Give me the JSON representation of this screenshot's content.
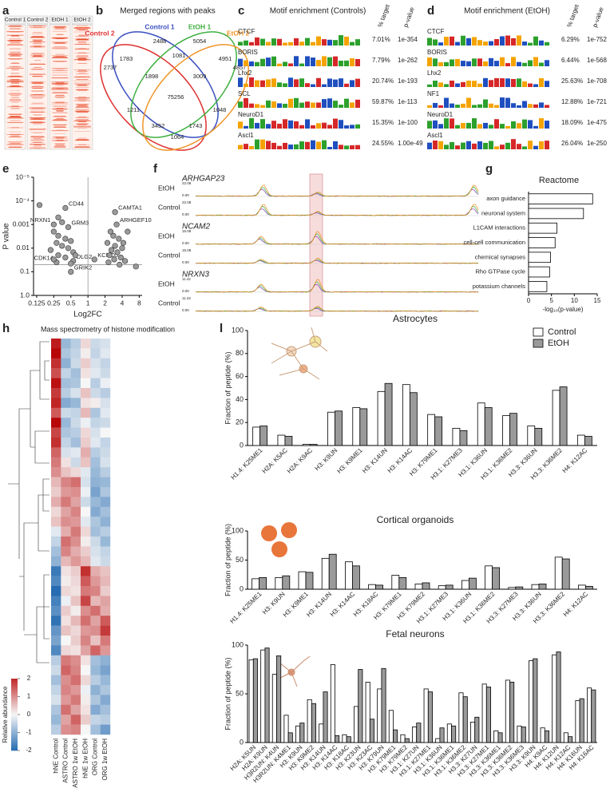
{
  "panels": [
    "a",
    "b",
    "c",
    "d",
    "e",
    "f",
    "g",
    "h",
    "l"
  ],
  "panel_a": {
    "samples": [
      "Control 1",
      "Control 2",
      "EtOH 1",
      "EtOH 2"
    ]
  },
  "panel_b": {
    "title": "Merged regions with peaks",
    "sets": [
      {
        "name": "Control 2",
        "color": "#e03030"
      },
      {
        "name": "Control 1",
        "color": "#3a4fc0"
      },
      {
        "name": "EtOH 1",
        "color": "#3fb040"
      },
      {
        "name": "EtOH 2",
        "color": "#f0962a"
      }
    ],
    "regions": [
      2737,
      2488,
      5054,
      4857,
      1783,
      1081,
      4951,
      1898,
      3009,
      75256,
      1211,
      1048,
      3452,
      1743,
      1064
    ]
  },
  "panel_c": {
    "title": "Motif enrichment (Controls)",
    "columns": [
      "% target",
      "p-value"
    ],
    "rows": [
      [
        "CTCF",
        "7.01%",
        "1e-354"
      ],
      [
        "BORIS",
        "7.79%",
        "1e-262"
      ],
      [
        "Lhx2",
        "20.74%",
        "1e-193"
      ],
      [
        "SCL",
        "59.87%",
        "1e-113"
      ],
      [
        "NeuroD1",
        "15.35%",
        "1e-100"
      ],
      [
        "Ascl1",
        "24.55%",
        "1.00e-49"
      ]
    ]
  },
  "panel_d": {
    "title": "Motif enrichment (EtOH)",
    "columns": [
      "% target",
      "p-value"
    ],
    "rows": [
      [
        "CTCF",
        "6.29%",
        "1e-752"
      ],
      [
        "BORIS",
        "6.44%",
        "1e-568"
      ],
      [
        "Lhx2",
        "25.63%",
        "1e-708"
      ],
      [
        "NF1",
        "12.88%",
        "1e-721"
      ],
      [
        "NeuroD1",
        "18.09%",
        "1e-475"
      ],
      [
        "Ascl1",
        "26.04%",
        "1e-250"
      ]
    ]
  },
  "panel_f": {
    "conditions": [
      "EtOH",
      "Control"
    ],
    "tracks": [
      {
        "gene": "ARHGAP23",
        "scale": [
          "22.08",
          "0.00"
        ]
      },
      {
        "gene": "NCAM2",
        "scale": [
          "15.08",
          "0.00"
        ]
      },
      {
        "gene": "NRXN3",
        "scale": [
          "11.42",
          "0.00"
        ]
      }
    ]
  },
  "chart_data": [
    {
      "type": "scatter",
      "xlabel": "Log2FC",
      "ylabel": "P value",
      "log_x": true,
      "log_y": true,
      "x": [
        0.4,
        0.25,
        0.45,
        3,
        3.2,
        1.3,
        0.55,
        0.28,
        0.5,
        0.14,
        0.3,
        0.35,
        0.25,
        0.3,
        0.4,
        0.5,
        0.28,
        0.35,
        0.45,
        0.22,
        0.55,
        0.3,
        0.4,
        0.6,
        0.25,
        0.5,
        2.5,
        2.8,
        3.5,
        2.2,
        3,
        4,
        2.6,
        3.3,
        2.4,
        3.8,
        2.9,
        4.5,
        2.3,
        5,
        4.2,
        7,
        3.6
      ],
      "y": [
        0.0002,
        0.001,
        0.0013,
        0.0003,
        0.001,
        0.03,
        0.035,
        0.04,
        0.1,
        0.00015,
        0.0005,
        0.0008,
        0.002,
        0.003,
        0.004,
        0.005,
        0.006,
        0.008,
        0.01,
        0.012,
        0.015,
        0.02,
        0.025,
        0.02,
        0.03,
        0.045,
        0.002,
        0.003,
        0.004,
        0.006,
        0.008,
        0.01,
        0.012,
        0.015,
        0.02,
        0.025,
        0.03,
        0.035,
        0.04,
        0.002,
        0.006,
        0.06,
        0.05
      ],
      "labels": [
        "CD44",
        "NRXN1",
        "GRM3",
        "CAMTA1",
        "ARHGEF10",
        "KCNQ5",
        "DLG2",
        "CDK14",
        "GRIK2",
        null,
        null,
        null,
        null,
        null,
        null,
        null,
        null,
        null,
        null,
        null,
        null,
        null,
        null,
        null,
        null,
        null,
        null,
        null,
        null,
        null,
        null,
        null,
        null,
        null,
        null,
        null,
        null,
        null,
        null,
        null,
        null,
        null,
        null
      ],
      "color": "#9a9a9a",
      "p_threshold": 0.05,
      "fc_threshold": 1,
      "xlim": [
        0.11,
        9
      ],
      "xticks": [
        0.125,
        0.25,
        0.5,
        1,
        2,
        4,
        8
      ],
      "ylim": [
        1,
        1e-05
      ],
      "yticks": [
        {
          "value": 1e-05,
          "label": "10⁻⁵"
        },
        {
          "value": 0.0001,
          "label": "10⁻⁴"
        },
        0.001,
        0.01,
        0.1,
        {
          "value": 1,
          "label": "1.0"
        }
      ]
    },
    {
      "type": "bar",
      "orientation": "horizontal",
      "title": "Reactome",
      "xlabel": "-log₁₀(p-value)",
      "categories": [
        "axon guidance",
        "neuronal system",
        "L1CAM interactions",
        "cell-cell communication",
        "chemical synapses",
        "Rho GTPase cycle",
        "potassium channels"
      ],
      "values": [
        14,
        12,
        6.2,
        5.8,
        4.8,
        4.6,
        4
      ],
      "color": "#ffffff",
      "xlim": [
        0,
        15
      ],
      "xticks": [
        0,
        5,
        10,
        15
      ]
    },
    {
      "type": "heatmap",
      "title": "Mass spectrometry of histone modification",
      "columns": [
        "hNE Control",
        "ASTRO Control",
        "ASTRO 1w EtOH",
        "hNE 1w EtOH",
        "ORG Control",
        "ORG 1w EtOH"
      ],
      "colorbar_label": "Relative abundance",
      "clim": [
        -2,
        2
      ],
      "colorbar_ticks": [
        2,
        1,
        0,
        -1,
        -2
      ],
      "values": [
        [
          2.1,
          -0.9,
          -0.6,
          0.3,
          -0.4,
          -0.3
        ],
        [
          2.3,
          -0.7,
          -0.5,
          0.1,
          -0.5,
          -0.2
        ],
        [
          1.9,
          -1.0,
          -0.4,
          0.4,
          -0.3,
          -0.5
        ],
        [
          1.6,
          -0.5,
          -0.8,
          0.2,
          -0.2,
          -0.4
        ],
        [
          2.2,
          -0.8,
          -0.7,
          0.0,
          -0.6,
          -0.1
        ],
        [
          1.8,
          -0.6,
          -0.3,
          0.5,
          -0.4,
          -0.6
        ],
        [
          2.0,
          -1.1,
          -0.9,
          0.2,
          0.1,
          -0.3
        ],
        [
          1.5,
          -0.4,
          -0.5,
          0.6,
          -0.7,
          -0.2
        ],
        [
          2.3,
          -0.9,
          -0.4,
          -0.1,
          -0.5,
          -0.4
        ],
        [
          1.7,
          -0.7,
          -0.6,
          0.3,
          -0.3,
          0.0
        ],
        [
          1.9,
          -0.5,
          -0.8,
          0.4,
          -0.2,
          -0.5
        ],
        [
          1.4,
          -0.3,
          -0.2,
          0.7,
          -0.6,
          -0.4
        ],
        [
          1.2,
          0.2,
          -0.4,
          0.5,
          -0.8,
          -0.3
        ],
        [
          1.0,
          0.5,
          0.3,
          -0.2,
          -0.9,
          -0.6
        ],
        [
          0.6,
          1.1,
          1.3,
          -0.3,
          -1.0,
          -0.9
        ],
        [
          0.4,
          0.9,
          1.0,
          -0.1,
          -1.2,
          -0.7
        ],
        [
          0.7,
          1.2,
          0.8,
          -0.4,
          -0.9,
          -1.1
        ],
        [
          0.3,
          0.8,
          1.1,
          0.0,
          -1.1,
          -0.8
        ],
        [
          0.5,
          1.0,
          0.9,
          -0.2,
          -0.7,
          -1.0
        ],
        [
          -0.2,
          0.7,
          1.2,
          0.3,
          -0.8,
          -0.6
        ],
        [
          -0.5,
          1.3,
          1.0,
          0.1,
          -0.4,
          -0.9
        ],
        [
          -0.8,
          1.1,
          0.7,
          0.4,
          -0.3,
          -0.5
        ],
        [
          -1.0,
          0.6,
          0.9,
          0.6,
          -0.2,
          -0.4
        ],
        [
          -1.8,
          0.2,
          0.4,
          1.9,
          0.7,
          0.5
        ],
        [
          -1.6,
          0.1,
          0.3,
          1.5,
          0.9,
          0.6
        ],
        [
          -2.0,
          0.3,
          0.2,
          1.2,
          1.1,
          0.4
        ],
        [
          -1.7,
          -0.1,
          0.5,
          1.7,
          0.6,
          0.8
        ],
        [
          -1.5,
          0.4,
          0.1,
          1.0,
          1.3,
          0.7
        ],
        [
          -1.9,
          0.2,
          0.6,
          1.3,
          0.8,
          1.5
        ],
        [
          -1.4,
          0.5,
          0.3,
          0.9,
          1.0,
          1.8
        ],
        [
          -1.2,
          0.0,
          0.4,
          1.1,
          0.5,
          1.2
        ],
        [
          -1.6,
          0.3,
          0.2,
          0.8,
          1.4,
          0.9
        ],
        [
          -0.6,
          1.2,
          1.0,
          0.2,
          -0.8,
          -1.0
        ],
        [
          -0.4,
          1.4,
          1.1,
          0.0,
          -0.9,
          -1.2
        ],
        [
          -0.8,
          1.0,
          1.3,
          0.3,
          -0.6,
          -0.9
        ],
        [
          -0.5,
          1.1,
          0.9,
          -0.1,
          -1.0,
          -0.7
        ],
        [
          -0.3,
          0.9,
          1.2,
          0.1,
          -0.7,
          -1.1
        ],
        [
          -0.7,
          1.3,
          0.8,
          0.2,
          -1.1,
          -0.8
        ],
        [
          -0.9,
          0.8,
          1.4,
          0.4,
          -0.5,
          -0.6
        ],
        [
          -0.6,
          1.0,
          1.1,
          0.0,
          -0.8,
          -1.3
        ]
      ]
    },
    {
      "type": "grouped_bar",
      "title": "Astrocytes",
      "ylabel": "Fraction of peptide (%)",
      "legend": "top-right",
      "categories": [
        "H1.4: K25ME1",
        "H2A: K5AC",
        "H2A: K9AC",
        "H3: K9UN",
        "H3: K9ME1",
        "H3: K14UN",
        "H3: K14AC",
        "H3: K79ME1",
        "H3.1: K27ME3",
        "H3.1: K36UN",
        "H3.1: K36ME2",
        "H3.3: K36UN",
        "H3.3: K36ME2",
        "H4: K12AC"
      ],
      "series": [
        {
          "name": "Control",
          "color": "#ffffff",
          "values": [
            16,
            9,
            1,
            29,
            33,
            47,
            53,
            27,
            15,
            37,
            26,
            17,
            48,
            9
          ]
        },
        {
          "name": "EtOH",
          "color": "#9a9a9a",
          "values": [
            17,
            8,
            1,
            30,
            32,
            54,
            46,
            25,
            13,
            33,
            28,
            15,
            51,
            8
          ]
        }
      ],
      "ylim": [
        0,
        100
      ],
      "yticks": [
        0,
        20,
        40,
        60,
        80,
        100
      ]
    },
    {
      "type": "grouped_bar",
      "title": "Cortical organoids",
      "ylabel": "Fraction of peptide (%)",
      "categories": [
        "H1.4: K25ME1",
        "H3: K9UN",
        "H3: K9ME1",
        "H3: K14UN",
        "H3: K14AC",
        "H3: K18AC",
        "H3: K79ME1",
        "H3: K79ME2",
        "H3.1: K27ME3",
        "H3.1: K36UN",
        "H3.1: K36ME2",
        "H3.3: K27ME3",
        "H3.3: K36UN",
        "H3.3: K36ME2",
        "H4: K12AC"
      ],
      "series": [
        {
          "color": "#ffffff",
          "values": [
            18,
            20,
            30,
            53,
            47,
            8,
            24,
            9,
            6,
            15,
            40,
            3,
            8,
            55,
            7
          ]
        },
        {
          "color": "#9a9a9a",
          "values": [
            20,
            23,
            29,
            60,
            40,
            7,
            20,
            11,
            7,
            19,
            37,
            4,
            9,
            52,
            5
          ]
        }
      ],
      "ylim": [
        0,
        100
      ],
      "yticks": [
        0,
        50,
        100
      ]
    },
    {
      "type": "grouped_bar",
      "title": "Fetal neurons",
      "ylabel": "Fraction of peptide (%)",
      "categories": [
        "H2A: K5UN",
        "H2A: K9UN",
        "H3R2UN: K4UN",
        "H3R2UN: K4ME1",
        "H3: K9UN",
        "H3: K9ME2",
        "H3: K14UN",
        "H3: K14AC",
        "H3: K18AC",
        "H3: K23UN",
        "H3: K23AC",
        "H3: K79UN",
        "H3: K79ME1",
        "H3: K79ME2",
        "H3.1: K27UN",
        "H3.1: K27ME1",
        "H3.1: K36UN",
        "H3.1: K36ME1",
        "H3.1: K36ME2",
        "H3.3: K27UN",
        "H3.3: K27ME1",
        "H3.3: K36ME1",
        "H3.3: K36ME2",
        "H3.3: K36ME3",
        "H3.3: K9UN",
        "H4: K9AC",
        "H4: K12UN",
        "H4: K12AC",
        "H4: K16UN",
        "H4: K16AC"
      ],
      "series": [
        {
          "color": "#ffffff",
          "values": [
            85,
            95,
            70,
            28,
            17,
            44,
            19,
            80,
            8,
            37,
            62,
            55,
            33,
            8,
            16,
            55,
            4,
            19,
            51,
            21,
            60,
            12,
            64,
            17,
            84,
            15,
            90,
            10,
            43,
            56
          ]
        },
        {
          "color": "#9a9a9a",
          "values": [
            86,
            97,
            89,
            10,
            20,
            40,
            52,
            7,
            6,
            75,
            24,
            76,
            13,
            4,
            20,
            52,
            15,
            17,
            47,
            26,
            57,
            10,
            62,
            16,
            86,
            12,
            93,
            6,
            45,
            54
          ]
        }
      ],
      "ylim": [
        0,
        100
      ],
      "yticks": [
        0,
        50,
        100
      ]
    }
  ]
}
